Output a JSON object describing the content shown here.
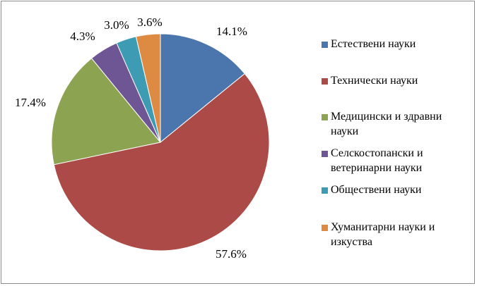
{
  "chart_data": {
    "type": "pie",
    "title": "",
    "start_angle_deg": 0,
    "direction": "clockwise",
    "legend_position": "right",
    "slices": [
      {
        "label": "Естествени науки",
        "value": 14.1,
        "value_label": "14.1%",
        "color": "#4a76ad"
      },
      {
        "label": "Технически науки",
        "value": 57.6,
        "value_label": "57.6%",
        "color": "#ac4a47"
      },
      {
        "label": "Медицински и здравни науки",
        "value": 17.4,
        "value_label": "17.4%",
        "color": "#8ca452"
      },
      {
        "label": "Селскостопански и ветеринарни науки",
        "value": 4.3,
        "value_label": "4.3%",
        "color": "#6e5593"
      },
      {
        "label": "Обществени науки",
        "value": 3.0,
        "value_label": "3.0%",
        "color": "#3e9bb4"
      },
      {
        "label": "Хуманитарни науки и изкуства",
        "value": 3.6,
        "value_label": "3.6%",
        "color": "#dd8a43"
      }
    ]
  }
}
